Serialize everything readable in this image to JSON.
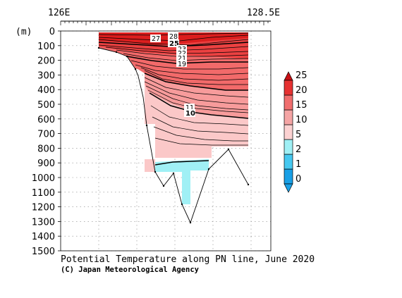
{
  "chart_data": {
    "type": "contour",
    "title": "Potential Temperature along PN line, June 2020",
    "credit": "(C) Japan Meteorological Agency",
    "x_axis": {
      "ticks": [
        "126E",
        "128.5E"
      ]
    },
    "y_axis": {
      "unit_label": "(m)",
      "range": [
        0,
        1500
      ],
      "ticks": [
        0,
        100,
        200,
        300,
        400,
        500,
        600,
        700,
        800,
        900,
        1000,
        1100,
        1200,
        1300,
        1400,
        1500
      ]
    },
    "colorbar": {
      "levels": [
        0,
        1,
        2,
        5,
        10,
        15,
        20,
        25
      ],
      "tick_labels": [
        "0",
        "1",
        "2",
        "5",
        "10",
        "15",
        "20",
        "25"
      ],
      "colors": [
        "#19a0e6",
        "#46c8f0",
        "#a0f0f5",
        "#fcd2d2",
        "#f5a5a5",
        "#f06e6e",
        "#e63232",
        "#c80f14"
      ]
    },
    "contour_labels": [
      {
        "text": "27",
        "style": "normal"
      },
      {
        "text": "28",
        "style": "normal"
      },
      {
        "text": "25",
        "style": "bold"
      },
      {
        "text": "23",
        "style": "normal"
      },
      {
        "text": "22",
        "style": "normal"
      },
      {
        "text": "21",
        "style": "normal"
      },
      {
        "text": "19",
        "style": "normal"
      },
      {
        "text": "11",
        "style": "normal"
      },
      {
        "text": "10",
        "style": "bold"
      }
    ],
    "grid": "dotted",
    "shading_colors": {
      "over_25": "#dc1e1e",
      "t20_25": "#eb4141",
      "t15_20": "#f26a6a",
      "t10_15": "#f79b9b",
      "t5_10": "#fbc8c8",
      "t2_5": "#a0f0f5",
      "outline": "#000000"
    }
  }
}
